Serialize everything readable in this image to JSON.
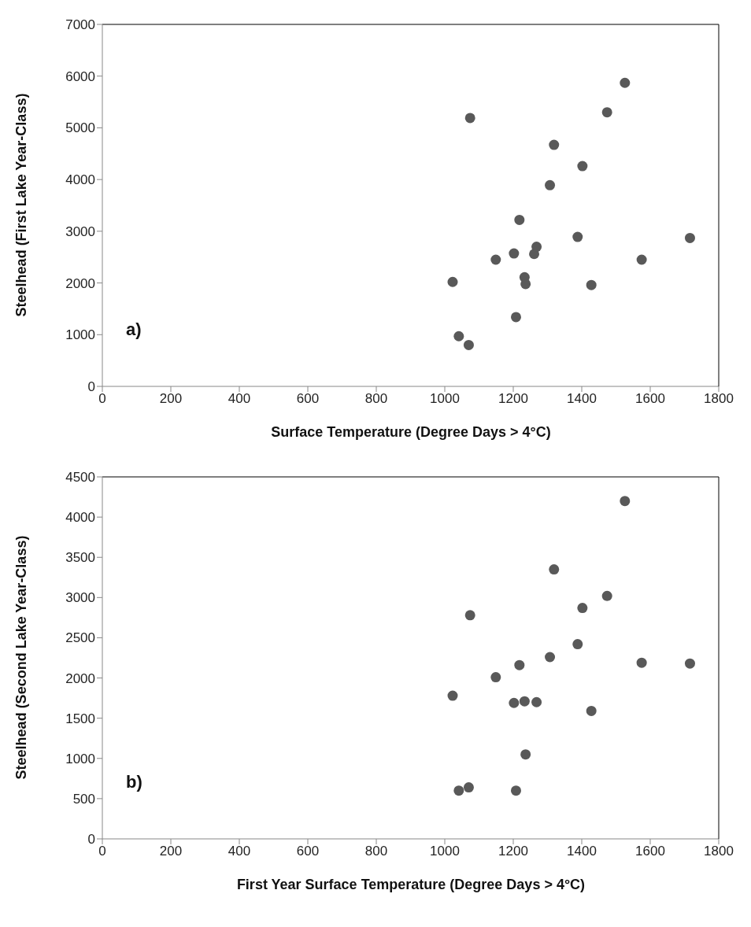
{
  "chart_data": [
    {
      "type": "scatter",
      "xlabel": "Surface Temperature (Degree Days > 4°C)",
      "ylabel": "Steelhead (First Lake Year-Class)",
      "annotations": [
        "a)"
      ],
      "x": [
        1023,
        1041,
        1070,
        1074,
        1149,
        1202,
        1208,
        1218,
        1233,
        1236,
        1261,
        1268,
        1307,
        1319,
        1388,
        1402,
        1428,
        1474,
        1526,
        1575,
        1716
      ],
      "values": [
        2020,
        970,
        800,
        5190,
        2450,
        2570,
        1340,
        3220,
        2110,
        1980,
        2560,
        2700,
        3890,
        4670,
        2890,
        4260,
        1960,
        5300,
        5870,
        2450,
        2870
      ],
      "color": "#595959",
      "marker": "circle",
      "grid": false,
      "legend": false,
      "xlim": [
        0,
        1800
      ],
      "xticks": [
        0,
        200,
        400,
        600,
        800,
        1000,
        1200,
        1400,
        1600,
        1800
      ],
      "ylim": [
        0,
        7000
      ],
      "yticks": [
        0,
        1000,
        2000,
        3000,
        4000,
        5000,
        6000,
        7000
      ]
    },
    {
      "type": "scatter",
      "xlabel": "First Year Surface Temperature (Degree Days > 4°C)",
      "ylabel": "Steelhead (Second Lake Year-Class)",
      "annotations": [
        "b)"
      ],
      "x": [
        1023,
        1041,
        1070,
        1074,
        1149,
        1202,
        1208,
        1218,
        1233,
        1236,
        1268,
        1307,
        1319,
        1388,
        1402,
        1428,
        1474,
        1526,
        1575,
        1716
      ],
      "values": [
        1780,
        600,
        640,
        2780,
        2010,
        1690,
        600,
        2160,
        1710,
        1050,
        1700,
        2260,
        3350,
        2420,
        2870,
        1590,
        3020,
        4200,
        2190,
        2180
      ],
      "color": "#595959",
      "marker": "circle",
      "grid": false,
      "legend": false,
      "xlim": [
        0,
        1800
      ],
      "xticks": [
        0,
        200,
        400,
        600,
        800,
        1000,
        1200,
        1400,
        1600,
        1800
      ],
      "ylim": [
        0,
        4500
      ],
      "yticks": [
        0,
        500,
        1000,
        1500,
        2000,
        2500,
        3000,
        3500,
        4000,
        4500
      ]
    }
  ]
}
